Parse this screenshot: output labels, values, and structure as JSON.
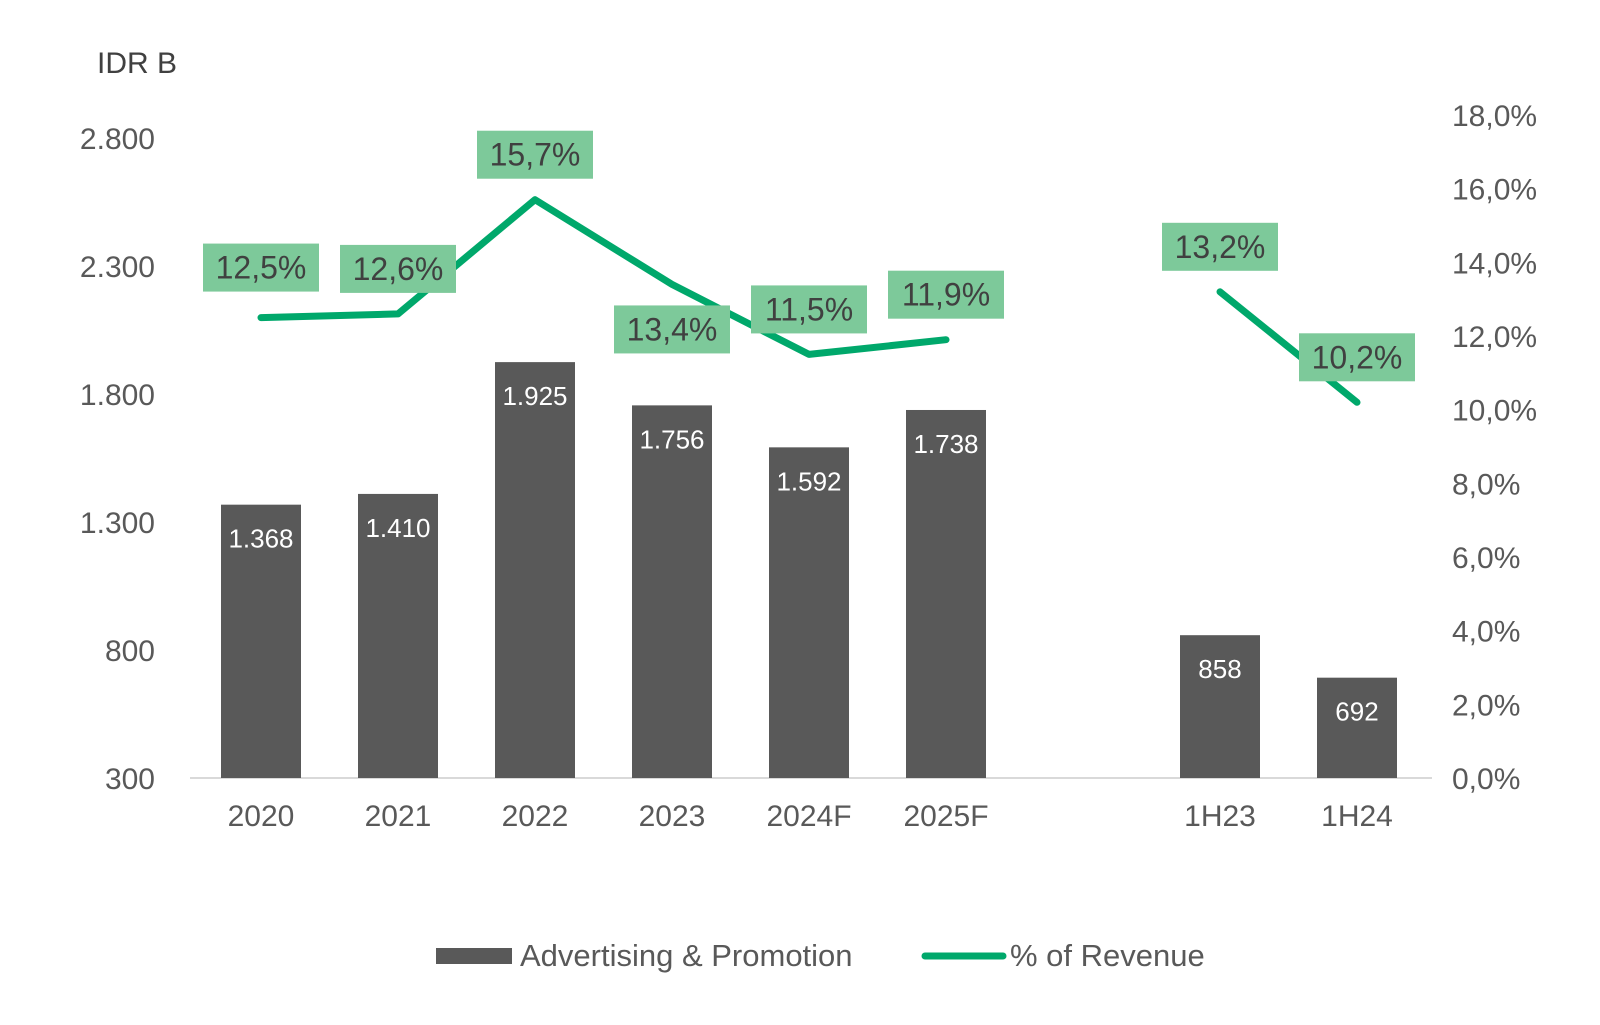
{
  "chart_data": {
    "type": "bar",
    "unit_label": "IDR B",
    "categories": [
      "2020",
      "2021",
      "2022",
      "2023",
      "2024F",
      "2025F",
      "1H23",
      "1H24"
    ],
    "series": [
      {
        "name": "Advertising & Promotion",
        "type": "bar",
        "axis": "left",
        "values": [
          1368,
          1410,
          1925,
          1756,
          1592,
          1738,
          858,
          692
        ],
        "labels": [
          "1.368",
          "1.410",
          "1.925",
          "1.756",
          "1.592",
          "1.738",
          "858",
          "692"
        ]
      },
      {
        "name": "% of Revenue",
        "type": "line",
        "axis": "right",
        "segments": [
          [
            0,
            5
          ],
          [
            6,
            7
          ]
        ],
        "values": [
          12.5,
          12.6,
          15.7,
          13.4,
          11.5,
          11.9,
          13.2,
          10.2
        ],
        "labels": [
          "12,5%",
          "12,6%",
          "15,7%",
          "13,4%",
          "11,5%",
          "11,9%",
          "13,2%",
          "10,2%"
        ]
      }
    ],
    "y_left": {
      "min": 300,
      "max": 3000,
      "ticks": [
        300,
        800,
        1300,
        1800,
        2300,
        2800
      ],
      "tick_labels": [
        "300",
        "800",
        "1.300",
        "1.800",
        "2.300",
        "2.800"
      ]
    },
    "y_right": {
      "min": 0,
      "max": 18,
      "ticks": [
        0,
        2,
        4,
        6,
        8,
        10,
        12,
        14,
        16,
        18
      ],
      "tick_labels": [
        "0,0%",
        "2,0%",
        "4,0%",
        "6,0%",
        "8,0%",
        "10,0%",
        "12,0%",
        "14,0%",
        "16,0%",
        "18,0%"
      ]
    },
    "grid": false,
    "legend_position": "bottom",
    "colors": {
      "bar": "#595959",
      "line": "#00a86b",
      "label_box": "#7dc99a",
      "axis": "#d9d9d9"
    }
  }
}
